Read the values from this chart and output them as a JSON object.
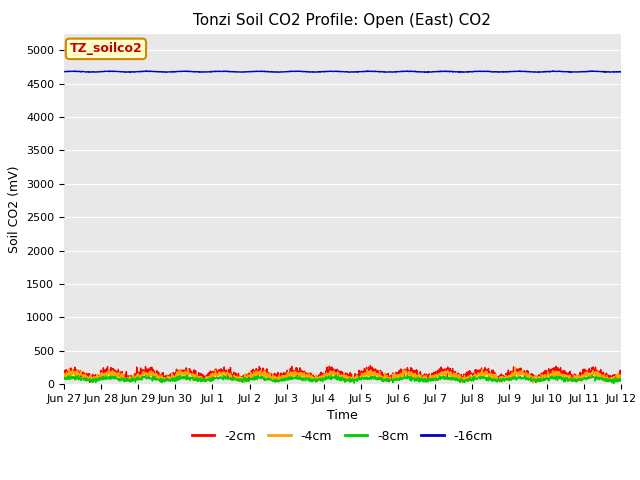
{
  "title": "Tonzi Soil CO2 Profile: Open (East) CO2",
  "ylabel": "Soil CO2 (mV)",
  "xlabel": "Time",
  "ylim": [
    0,
    5250
  ],
  "yticks": [
    0,
    500,
    1000,
    1500,
    2000,
    2500,
    3000,
    3500,
    4000,
    4500,
    5000
  ],
  "background_color": "#e8e8e8",
  "fig_facecolor": "#ffffff",
  "series": {
    "-2cm": {
      "color": "#ff0000",
      "mean": 150,
      "amplitude": 50,
      "noise": 30
    },
    "-4cm": {
      "color": "#ffa500",
      "mean": 120,
      "amplitude": 40,
      "noise": 25
    },
    "-8cm": {
      "color": "#00cc00",
      "mean": 75,
      "amplitude": 20,
      "noise": 15
    },
    "-16cm": {
      "color": "#0000cc",
      "mean": 4680,
      "amplitude": 5,
      "noise": 2
    }
  },
  "xtick_labels": [
    "Jun 27",
    "Jun 28",
    "Jun 29",
    "Jun 30",
    "Jul 1",
    "Jul 2",
    "Jul 3",
    "Jul 4",
    "Jul 5",
    "Jul 6",
    "Jul 7",
    "Jul 8",
    "Jul 9",
    "Jul 10",
    "Jul 11",
    "Jul 12"
  ],
  "n_points": 1600,
  "legend_label": "TZ_soilco2",
  "legend_bg": "#ffffcc",
  "legend_border": "#cc8800",
  "title_fontsize": 11,
  "axis_fontsize": 9,
  "tick_fontsize": 8
}
